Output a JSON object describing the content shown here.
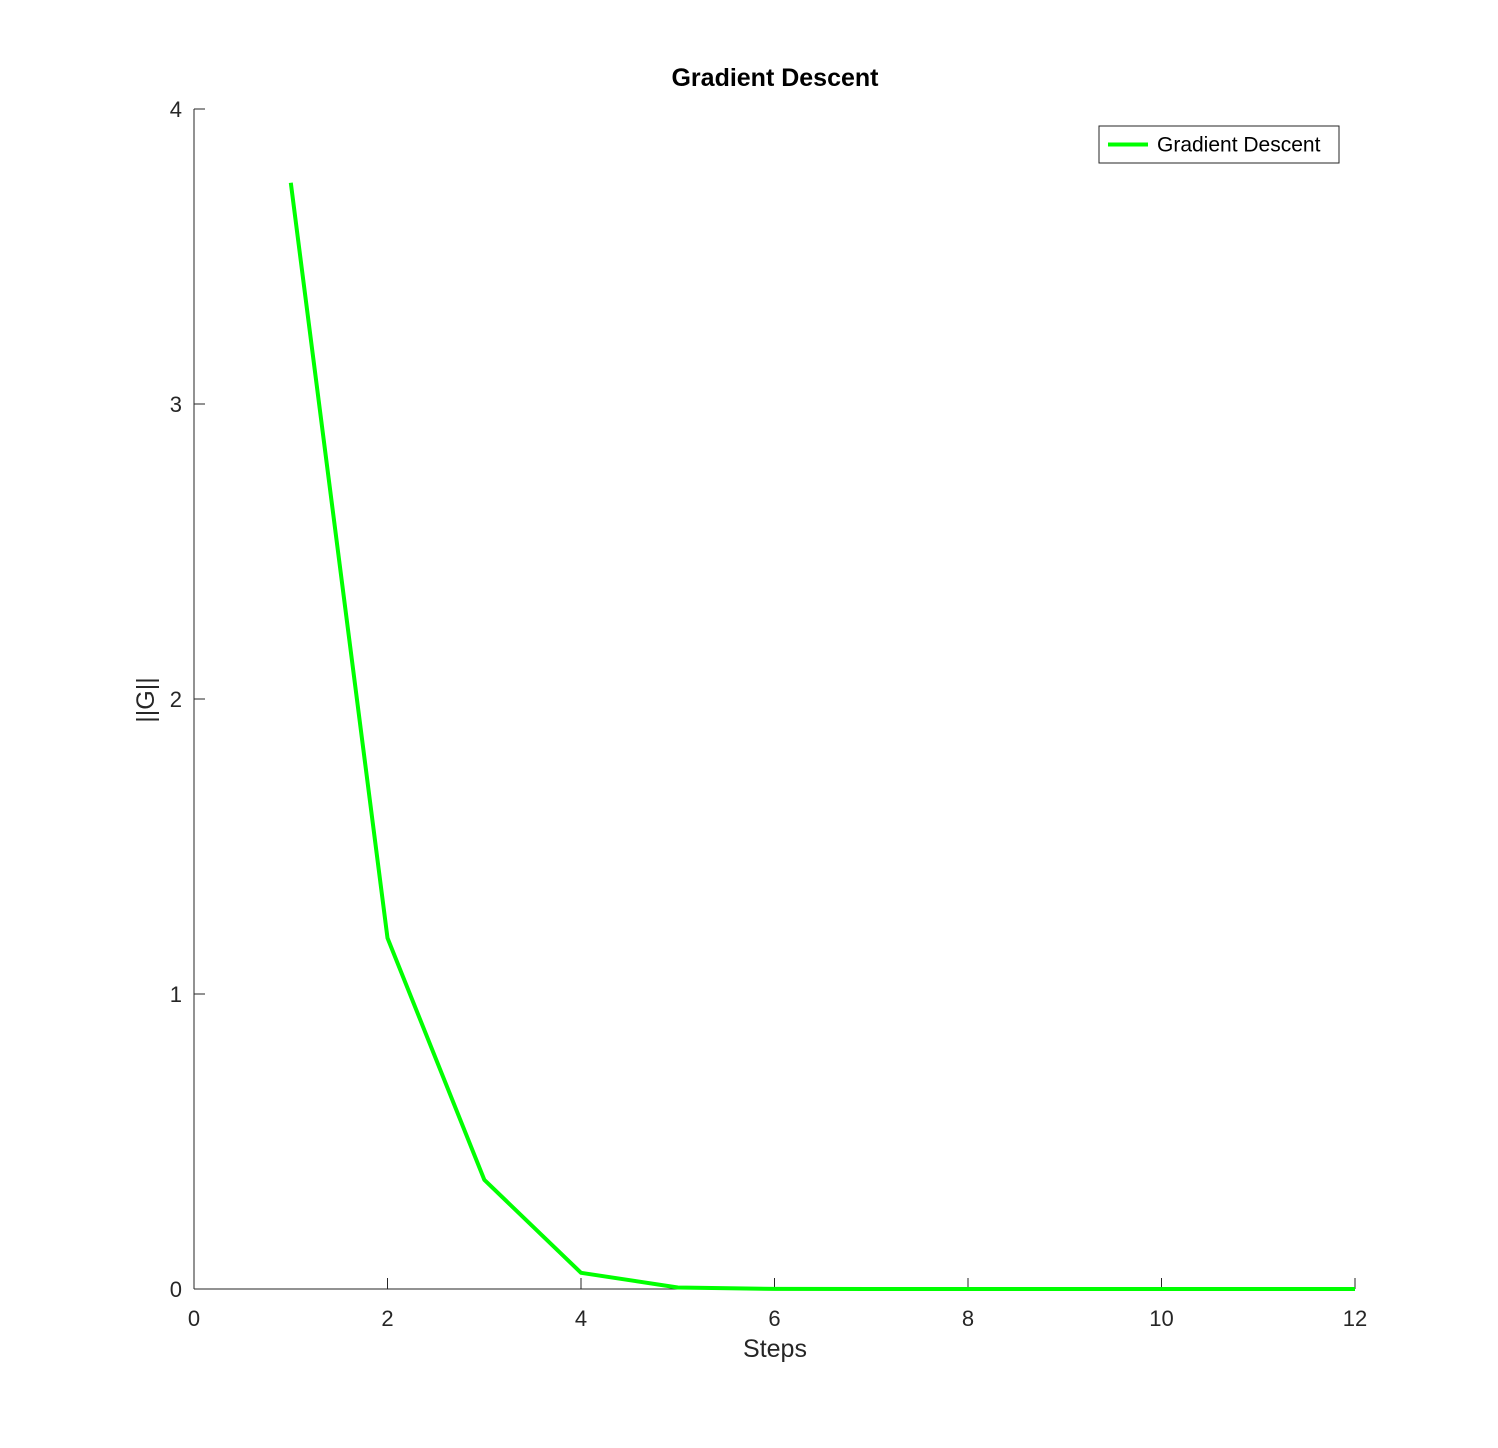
{
  "chart_data": {
    "type": "line",
    "title": "Gradient Descent",
    "xlabel": "Steps",
    "ylabel": "||G||",
    "xlim": [
      0,
      12
    ],
    "ylim": [
      0,
      4
    ],
    "xticks": [
      0,
      2,
      4,
      6,
      8,
      10,
      12
    ],
    "yticks": [
      0,
      1,
      2,
      3,
      4
    ],
    "grid": false,
    "legend_position": "top-right",
    "series": [
      {
        "name": "Gradient Descent",
        "color": "#00ff00",
        "x": [
          1,
          2,
          3,
          4,
          5,
          6,
          7,
          8,
          9,
          10,
          11,
          12
        ],
        "y": [
          3.75,
          1.19,
          0.37,
          0.055,
          0.005,
          0.0005,
          0.0001,
          0,
          0,
          0,
          0,
          0
        ]
      }
    ]
  }
}
